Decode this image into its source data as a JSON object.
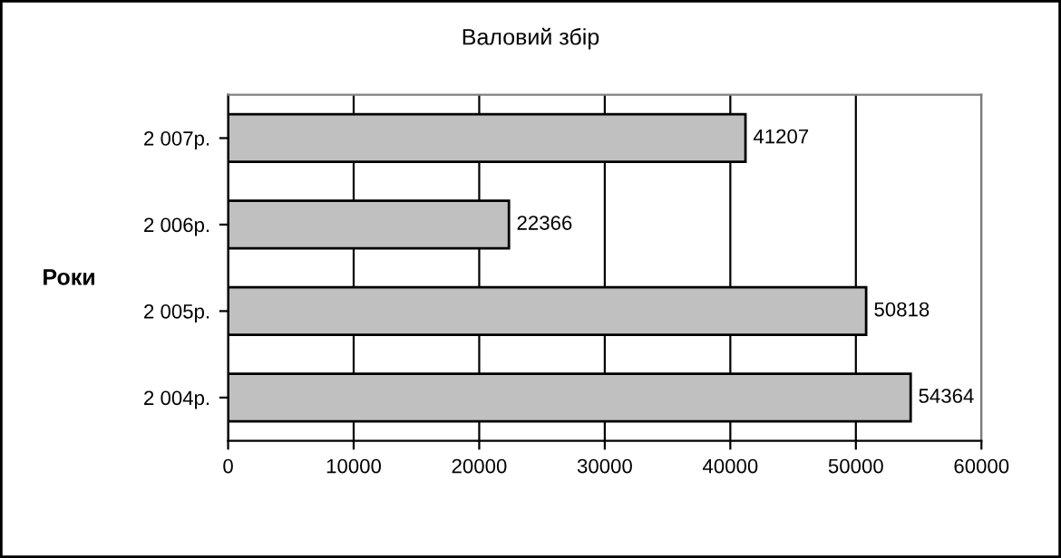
{
  "chart_data": {
    "type": "bar",
    "orientation": "horizontal",
    "title": "Валовий збір",
    "ylabel": "Роки",
    "categories": [
      "2 007р.",
      "2 006р.",
      "2 005р.",
      "2 004р."
    ],
    "values": [
      41207,
      22366,
      50818,
      54364
    ],
    "color": "#c0c0c0",
    "xlim": [
      0,
      60000
    ],
    "xticks": [
      0,
      10000,
      20000,
      30000,
      40000,
      50000,
      60000
    ],
    "grid": "x",
    "data_labels": true
  }
}
